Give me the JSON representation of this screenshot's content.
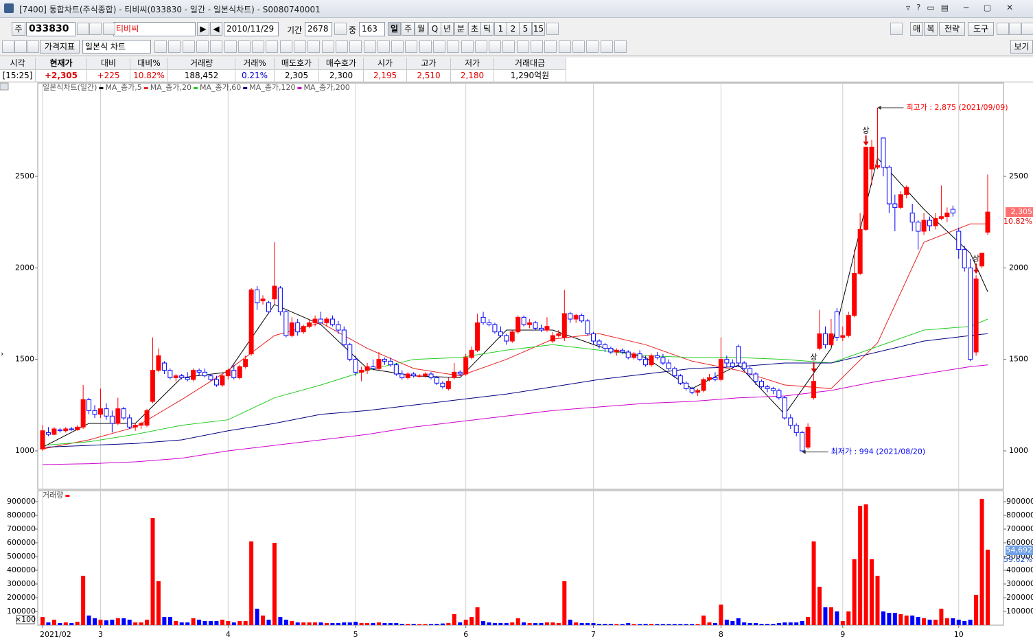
{
  "window": {
    "title": "[7400] 통합차트(주식종합) - 티비씨(033830 - 일간 - 일본식차트) - S0080740001"
  },
  "toolbar": {
    "market": "주",
    "code": "033830",
    "name": "티비씨",
    "date": "2010/11/29",
    "period_label": "기간",
    "period": "2678",
    "count_label": "중",
    "count": "163",
    "intervals": [
      "일",
      "주",
      "월",
      "Q",
      "년",
      "분",
      "초",
      "틱",
      "1",
      "2",
      "5",
      "15"
    ],
    "right_buttons": [
      "매",
      "복",
      "전략",
      "도구"
    ],
    "indicator": "가격지표",
    "chart_style": "일본식 차트",
    "view": "보기"
  },
  "quote": {
    "headers": [
      "시각",
      "현재가",
      "대비",
      "대비%",
      "거래량",
      "거래%",
      "매도호가",
      "매수호가",
      "시가",
      "고가",
      "저가",
      "거래대금"
    ],
    "values": [
      "[15:25]",
      "+2,305",
      "+225",
      "10.82%",
      "188,452",
      "0.21%",
      "2,305",
      "2,300",
      "2,195",
      "2,510",
      "2,180",
      "1,290억원"
    ]
  },
  "chart_data": [
    {
      "type": "candlestick",
      "title": "일본식차트(일간)",
      "ylim": [
        790,
        3010
      ],
      "yticks": [
        1000,
        1500,
        2000,
        2500
      ],
      "xticks": [
        {
          "value": 0,
          "label": "2021/02"
        },
        {
          "value": 10,
          "label": "3"
        },
        {
          "value": 32,
          "label": "4"
        },
        {
          "value": 54,
          "label": "5"
        },
        {
          "value": 73,
          "label": "6"
        },
        {
          "value": 95,
          "label": "7"
        },
        {
          "value": 117,
          "label": "8"
        },
        {
          "value": 138,
          "label": "9"
        },
        {
          "value": 158,
          "label": "10"
        }
      ],
      "grid": "x",
      "up_color": "#ff0000",
      "down_color": "#0000ff",
      "open": [
        1010,
        1100,
        1090,
        1115,
        1110,
        1120,
        1115,
        1130,
        1280,
        1220,
        1200,
        1230,
        1190,
        1150,
        1230,
        1180,
        1130,
        1140,
        1140,
        1270,
        1440,
        1480,
        1440,
        1400,
        1410,
        1400,
        1390,
        1440,
        1430,
        1410,
        1390,
        1360,
        1410,
        1440,
        1400,
        1460,
        1530,
        1880,
        1820,
        1810,
        1830,
        1890,
        1760,
        1630,
        1700,
        1650,
        1680,
        1700,
        1720,
        1700,
        1720,
        1690,
        1660,
        1580,
        1500,
        1430,
        1440,
        1460,
        1450,
        1500,
        1490,
        1470,
        1420,
        1400,
        1420,
        1410,
        1410,
        1420,
        1400,
        1370,
        1340,
        1400,
        1430,
        1420,
        1510,
        1550,
        1730,
        1700,
        1690,
        1650,
        1630,
        1600,
        1650,
        1730,
        1690,
        1700,
        1670,
        1660,
        1600,
        1630,
        1620,
        1750,
        1720,
        1740,
        1710,
        1640,
        1600,
        1580,
        1560,
        1540,
        1550,
        1540,
        1510,
        1530,
        1500,
        1470,
        1520,
        1510,
        1480,
        1450,
        1410,
        1370,
        1340,
        1320,
        1330,
        1390,
        1400,
        1390,
        1500,
        1480,
        1570,
        1480,
        1450,
        1420,
        1380,
        1350,
        1340,
        1330,
        1290,
        1180,
        1140,
        1100,
        1020,
        1290,
        1560,
        1640,
        1580,
        1760,
        1620,
        1630,
        1740,
        1970,
        2210,
        2540,
        2550,
        2710,
        2550,
        2350,
        2330,
        2400,
        2300,
        2250,
        2200,
        2260,
        2230,
        2270,
        2280,
        2320,
        2200,
        2100,
        2000,
        1540,
        2010,
        2195
      ],
      "high": [
        1140,
        1130,
        1130,
        1125,
        1130,
        1130,
        1140,
        1360,
        1290,
        1250,
        1340,
        1260,
        1220,
        1290,
        1240,
        1200,
        1150,
        1160,
        1230,
        1620,
        1560,
        1490,
        1450,
        1420,
        1420,
        1430,
        1450,
        1450,
        1450,
        1420,
        1410,
        1420,
        1450,
        1470,
        1470,
        1520,
        1890,
        1900,
        1850,
        1820,
        2140,
        1900,
        1770,
        1730,
        1720,
        1690,
        1720,
        1740,
        1760,
        1730,
        1740,
        1710,
        1680,
        1590,
        1520,
        1460,
        1480,
        1500,
        1540,
        1510,
        1510,
        1480,
        1440,
        1430,
        1430,
        1420,
        1430,
        1430,
        1410,
        1380,
        1400,
        1480,
        1440,
        1530,
        1570,
        1750,
        1760,
        1720,
        1700,
        1680,
        1640,
        1660,
        1740,
        1740,
        1720,
        1710,
        1690,
        1730,
        1650,
        1660,
        1880,
        1760,
        1750,
        1750,
        1720,
        1650,
        1610,
        1590,
        1570,
        1560,
        1560,
        1550,
        1540,
        1550,
        1520,
        1530,
        1540,
        1530,
        1500,
        1460,
        1420,
        1380,
        1350,
        1340,
        1400,
        1420,
        1430,
        1620,
        1520,
        1500,
        1580,
        1490,
        1460,
        1430,
        1390,
        1360,
        1350,
        1340,
        1300,
        1200,
        1150,
        1110,
        1150,
        1420,
        1770,
        1680,
        1720,
        1780,
        1680,
        1760,
        2100,
        2300,
        2660,
        2700,
        2875,
        2710,
        2560,
        2400,
        2420,
        2450,
        2350,
        2260,
        2300,
        2280,
        2300,
        2450,
        2330,
        2340,
        2220,
        2120,
        2050,
        1960,
        2080,
        2510
      ],
      "low": [
        1000,
        1080,
        1085,
        1100,
        1100,
        1110,
        1110,
        1120,
        1200,
        1180,
        1180,
        1170,
        1100,
        1140,
        1170,
        1120,
        1110,
        1120,
        1130,
        1260,
        1430,
        1420,
        1390,
        1380,
        1390,
        1380,
        1380,
        1410,
        1400,
        1380,
        1350,
        1350,
        1390,
        1390,
        1390,
        1450,
        1520,
        1770,
        1800,
        1750,
        1800,
        1740,
        1620,
        1620,
        1630,
        1640,
        1670,
        1680,
        1690,
        1680,
        1680,
        1640,
        1570,
        1490,
        1410,
        1380,
        1420,
        1440,
        1440,
        1470,
        1460,
        1410,
        1390,
        1390,
        1400,
        1400,
        1400,
        1390,
        1360,
        1340,
        1330,
        1390,
        1410,
        1410,
        1500,
        1540,
        1690,
        1680,
        1640,
        1620,
        1580,
        1590,
        1640,
        1680,
        1670,
        1660,
        1650,
        1650,
        1590,
        1620,
        1600,
        1700,
        1700,
        1700,
        1630,
        1580,
        1560,
        1540,
        1530,
        1520,
        1530,
        1500,
        1500,
        1490,
        1460,
        1460,
        1500,
        1470,
        1440,
        1400,
        1360,
        1330,
        1310,
        1300,
        1320,
        1380,
        1380,
        1380,
        1460,
        1450,
        1460,
        1440,
        1400,
        1360,
        1340,
        1320,
        1310,
        1280,
        1170,
        1120,
        1080,
        994,
        1010,
        1280,
        1550,
        1560,
        1570,
        1600,
        1600,
        1620,
        1730,
        1960,
        2200,
        2450,
        2540,
        2500,
        2300,
        2200,
        2320,
        2380,
        2200,
        2100,
        2180,
        2200,
        2210,
        2260,
        2250,
        2280,
        2050,
        1980,
        1490,
        1520,
        2000,
        2180
      ],
      "close": [
        1110,
        1090,
        1120,
        1110,
        1120,
        1115,
        1130,
        1280,
        1220,
        1200,
        1230,
        1190,
        1150,
        1230,
        1180,
        1130,
        1140,
        1150,
        1220,
        1440,
        1520,
        1440,
        1400,
        1410,
        1400,
        1390,
        1440,
        1430,
        1410,
        1390,
        1360,
        1410,
        1440,
        1400,
        1460,
        1500,
        1880,
        1810,
        1830,
        1760,
        1900,
        1760,
        1630,
        1700,
        1650,
        1680,
        1700,
        1720,
        1700,
        1720,
        1690,
        1660,
        1580,
        1500,
        1430,
        1440,
        1460,
        1450,
        1500,
        1490,
        1470,
        1420,
        1400,
        1420,
        1410,
        1410,
        1420,
        1400,
        1370,
        1350,
        1380,
        1430,
        1420,
        1510,
        1550,
        1700,
        1700,
        1690,
        1650,
        1630,
        1600,
        1650,
        1730,
        1690,
        1700,
        1670,
        1660,
        1680,
        1630,
        1640,
        1750,
        1720,
        1740,
        1710,
        1640,
        1600,
        1580,
        1560,
        1540,
        1550,
        1540,
        1510,
        1530,
        1500,
        1470,
        1520,
        1510,
        1480,
        1450,
        1410,
        1370,
        1340,
        1320,
        1330,
        1390,
        1400,
        1390,
        1500,
        1480,
        1460,
        1480,
        1450,
        1420,
        1380,
        1350,
        1340,
        1330,
        1290,
        1180,
        1140,
        1100,
        1000,
        1130,
        1380,
        1640,
        1580,
        1640,
        1620,
        1630,
        1740,
        1970,
        2210,
        2660,
        2660,
        2560,
        2550,
        2350,
        2330,
        2400,
        2440,
        2250,
        2200,
        2260,
        2230,
        2270,
        2280,
        2300,
        2300,
        2100,
        2000,
        1500,
        1940,
        2080,
        2305
      ],
      "series": [
        {
          "name": "MA_종가,5",
          "color": "#000000",
          "x": [
            0,
            8,
            16,
            24,
            32,
            40,
            48,
            56,
            64,
            72,
            80,
            88,
            96,
            104,
            112,
            120,
            128,
            136,
            144,
            152,
            160,
            163
          ],
          "values": [
            1020,
            1150,
            1150,
            1400,
            1430,
            1800,
            1690,
            1450,
            1410,
            1400,
            1660,
            1660,
            1570,
            1510,
            1340,
            1470,
            1200,
            1560,
            2600,
            2320,
            2080,
            1870
          ]
        },
        {
          "name": "MA_종가,20",
          "color": "#e82020",
          "x": [
            0,
            8,
            16,
            24,
            32,
            40,
            48,
            56,
            64,
            72,
            80,
            88,
            96,
            104,
            112,
            120,
            128,
            136,
            144,
            152,
            160,
            163
          ],
          "values": [
            1010,
            1060,
            1130,
            1280,
            1440,
            1630,
            1700,
            1560,
            1450,
            1410,
            1500,
            1610,
            1640,
            1580,
            1490,
            1440,
            1360,
            1340,
            1590,
            2140,
            2240,
            2240
          ]
        },
        {
          "name": "MA_종가,60",
          "color": "#22cc22",
          "x": [
            0,
            8,
            16,
            24,
            32,
            40,
            48,
            56,
            64,
            72,
            80,
            88,
            96,
            104,
            112,
            120,
            128,
            136,
            144,
            152,
            160,
            163
          ],
          "values": [
            1030,
            1050,
            1090,
            1140,
            1170,
            1290,
            1360,
            1440,
            1500,
            1510,
            1550,
            1580,
            1550,
            1520,
            1510,
            1510,
            1500,
            1480,
            1570,
            1660,
            1680,
            1720
          ]
        },
        {
          "name": "MA_종가,120",
          "color": "#000080",
          "x": [
            0,
            8,
            16,
            24,
            32,
            40,
            48,
            56,
            64,
            72,
            80,
            88,
            96,
            104,
            112,
            120,
            128,
            136,
            144,
            152,
            160,
            163
          ],
          "values": [
            1020,
            1030,
            1040,
            1060,
            1110,
            1150,
            1200,
            1220,
            1250,
            1280,
            1310,
            1350,
            1390,
            1420,
            1450,
            1460,
            1480,
            1480,
            1540,
            1600,
            1630,
            1640
          ]
        },
        {
          "name": "MA_종가,200",
          "color": "#cc00cc",
          "x": [
            0,
            8,
            16,
            24,
            32,
            40,
            48,
            56,
            64,
            72,
            80,
            88,
            96,
            104,
            112,
            120,
            128,
            136,
            144,
            152,
            160,
            163
          ],
          "values": [
            925,
            930,
            940,
            960,
            1000,
            1030,
            1060,
            1090,
            1130,
            1160,
            1190,
            1220,
            1240,
            1260,
            1270,
            1290,
            1300,
            1330,
            1380,
            1420,
            1460,
            1470
          ]
        }
      ],
      "current": {
        "value": 2305,
        "label": "2,305"
      },
      "current_change": "10.82%",
      "annotations": [
        {
          "text": "최고가 : 2,875 (2021/09/09)",
          "x": 144,
          "y": 2875,
          "color": "#ff0000"
        },
        {
          "text": "최저가 : 994 (2021/08/20)",
          "x": 131,
          "y": 994,
          "color": "#0000ff"
        }
      ],
      "markers": [
        {
          "text": "상",
          "x": 133
        },
        {
          "text": "상",
          "x": 142
        },
        {
          "text": "상",
          "x": 161
        }
      ]
    },
    {
      "type": "bar",
      "title": "거래량",
      "color": "#ff0000",
      "up_color": "#ff0000",
      "down_color": "#0000ff",
      "ylim": [
        0,
        980000
      ],
      "yticks": [
        100000,
        200000,
        300000,
        400000,
        500000,
        600000,
        700000,
        800000,
        900000
      ],
      "values": [
        60000,
        20000,
        40000,
        15000,
        20000,
        15000,
        25000,
        360000,
        70000,
        50000,
        40000,
        35000,
        40000,
        50000,
        50000,
        40000,
        20000,
        20000,
        40000,
        780000,
        320000,
        60000,
        60000,
        30000,
        20000,
        20000,
        50000,
        40000,
        30000,
        30000,
        30000,
        40000,
        30000,
        20000,
        30000,
        30000,
        610000,
        120000,
        70000,
        40000,
        600000,
        60000,
        40000,
        30000,
        20000,
        20000,
        20000,
        20000,
        20000,
        15000,
        15000,
        15000,
        20000,
        20000,
        25000,
        15000,
        15000,
        15000,
        20000,
        15000,
        15000,
        15000,
        10000,
        10000,
        10000,
        8000,
        8000,
        8000,
        10000,
        12000,
        15000,
        80000,
        20000,
        40000,
        60000,
        130000,
        30000,
        20000,
        15000,
        15000,
        15000,
        20000,
        50000,
        20000,
        15000,
        15000,
        15000,
        20000,
        20000,
        15000,
        320000,
        40000,
        20000,
        15000,
        15000,
        15000,
        10000,
        10000,
        10000,
        8000,
        8000,
        15000,
        8000,
        8000,
        10000,
        10000,
        8000,
        8000,
        8000,
        8000,
        8000,
        8000,
        8000,
        8000,
        70000,
        20000,
        15000,
        150000,
        40000,
        30000,
        50000,
        20000,
        15000,
        15000,
        10000,
        10000,
        10000,
        15000,
        20000,
        20000,
        20000,
        30000,
        60000,
        610000,
        280000,
        130000,
        130000,
        100000,
        30000,
        100000,
        480000,
        870000,
        880000,
        480000,
        360000,
        100000,
        90000,
        90000,
        80000,
        70000,
        70000,
        60000,
        50000,
        40000,
        40000,
        120000,
        50000,
        50000,
        40000,
        30000,
        40000,
        220000,
        920000,
        550000
      ],
      "unit_label": "×100",
      "current_label": "54,692",
      "current_change": "59.62%"
    }
  ]
}
